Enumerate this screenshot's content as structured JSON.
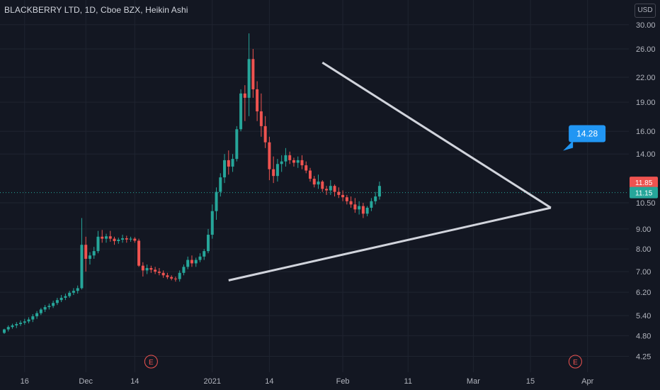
{
  "chart_data": {
    "type": "candlestick",
    "title": "BLACKBERRY LTD, 1D, Cboe BZX, Heikin Ashi",
    "currency": "USD",
    "y_scale": "log",
    "ylim": [
      4.0,
      33.0
    ],
    "y_ticks": [
      "30.00",
      "26.00",
      "22.00",
      "19.00",
      "16.00",
      "14.00",
      "11.85",
      "10.50",
      "9.00",
      "8.00",
      "7.00",
      "6.20",
      "5.40",
      "4.80",
      "4.25"
    ],
    "y_tick_values": [
      30.0,
      26.0,
      22.0,
      19.0,
      16.0,
      14.0,
      11.85,
      10.5,
      9.0,
      8.0,
      7.0,
      6.2,
      5.4,
      4.8,
      4.25
    ],
    "x_ticks": [
      "16",
      "Dec",
      "14",
      "2021",
      "14",
      "Feb",
      "11",
      "Mar",
      "15",
      "Apr"
    ],
    "x_tick_index": [
      5,
      20,
      32,
      51,
      65,
      83,
      99,
      115,
      129,
      143
    ],
    "last_price_tags": [
      {
        "label": "11.85",
        "value": 11.85,
        "color": "#ef5350"
      },
      {
        "label": "11.15",
        "value": 11.15,
        "color": "#26a69a"
      }
    ],
    "current_price_line": 11.15,
    "annotation": {
      "text": "14.28",
      "index": 137,
      "value": 14.28,
      "color": "#2196f3"
    },
    "earnings_markers": [
      {
        "label": "E",
        "index": 36
      },
      {
        "label": "E",
        "index": 140
      }
    ],
    "triangle": [
      {
        "index": 55,
        "value": 6.65
      },
      {
        "index": 78,
        "value": 24.0
      },
      {
        "index": 134,
        "value": 10.2
      }
    ],
    "candles": [
      [
        4.88,
        5.0,
        4.85,
        4.98
      ],
      [
        4.98,
        5.1,
        4.92,
        5.05
      ],
      [
        5.05,
        5.15,
        5.0,
        5.1
      ],
      [
        5.1,
        5.2,
        5.02,
        5.14
      ],
      [
        5.14,
        5.25,
        5.08,
        5.18
      ],
      [
        5.18,
        5.3,
        5.12,
        5.22
      ],
      [
        5.22,
        5.35,
        5.16,
        5.28
      ],
      [
        5.28,
        5.45,
        5.2,
        5.38
      ],
      [
        5.38,
        5.55,
        5.3,
        5.48
      ],
      [
        5.48,
        5.65,
        5.42,
        5.6
      ],
      [
        5.6,
        5.75,
        5.52,
        5.68
      ],
      [
        5.68,
        5.8,
        5.6,
        5.72
      ],
      [
        5.72,
        5.9,
        5.65,
        5.82
      ],
      [
        5.82,
        6.0,
        5.75,
        5.92
      ],
      [
        5.92,
        6.1,
        5.85,
        6.0
      ],
      [
        6.0,
        6.15,
        5.92,
        6.06
      ],
      [
        6.06,
        6.25,
        6.0,
        6.18
      ],
      [
        6.18,
        6.35,
        6.1,
        6.25
      ],
      [
        6.25,
        6.45,
        6.15,
        6.35
      ],
      [
        6.35,
        9.6,
        6.3,
        8.2
      ],
      [
        8.2,
        8.6,
        7.0,
        7.55
      ],
      [
        7.55,
        7.85,
        7.3,
        7.7
      ],
      [
        7.7,
        8.1,
        7.55,
        7.9
      ],
      [
        7.9,
        8.9,
        7.8,
        8.6
      ],
      [
        8.6,
        8.95,
        8.3,
        8.5
      ],
      [
        8.5,
        8.75,
        8.3,
        8.62
      ],
      [
        8.62,
        8.9,
        8.35,
        8.5
      ],
      [
        8.5,
        8.6,
        8.2,
        8.38
      ],
      [
        8.38,
        8.55,
        8.25,
        8.45
      ],
      [
        8.45,
        8.7,
        8.3,
        8.52
      ],
      [
        8.52,
        8.65,
        8.3,
        8.46
      ],
      [
        8.46,
        8.6,
        8.35,
        8.5
      ],
      [
        8.5,
        8.58,
        8.3,
        8.4
      ],
      [
        8.4,
        8.5,
        7.2,
        7.25
      ],
      [
        7.25,
        7.4,
        6.8,
        7.05
      ],
      [
        7.05,
        7.3,
        6.9,
        7.15
      ],
      [
        7.15,
        7.25,
        6.95,
        7.08
      ],
      [
        7.08,
        7.2,
        6.9,
        7.0
      ],
      [
        7.0,
        7.15,
        6.85,
        6.95
      ],
      [
        6.95,
        7.05,
        6.75,
        6.85
      ],
      [
        6.85,
        6.95,
        6.7,
        6.78
      ],
      [
        6.78,
        6.85,
        6.65,
        6.72
      ],
      [
        6.72,
        6.8,
        6.6,
        6.7
      ],
      [
        6.7,
        7.05,
        6.6,
        6.95
      ],
      [
        6.95,
        7.3,
        6.85,
        7.2
      ],
      [
        7.2,
        7.65,
        7.1,
        7.5
      ],
      [
        7.5,
        7.7,
        7.2,
        7.35
      ],
      [
        7.35,
        7.6,
        7.2,
        7.5
      ],
      [
        7.5,
        7.8,
        7.4,
        7.65
      ],
      [
        7.65,
        8.0,
        7.5,
        7.9
      ],
      [
        7.9,
        9.0,
        7.8,
        8.7
      ],
      [
        8.7,
        10.4,
        8.5,
        10.0
      ],
      [
        10.0,
        11.5,
        9.5,
        11.2
      ],
      [
        11.2,
        12.5,
        10.9,
        12.2
      ],
      [
        12.2,
        14.0,
        11.8,
        13.5
      ],
      [
        13.5,
        14.3,
        12.4,
        13.0
      ],
      [
        13.0,
        14.0,
        12.6,
        13.6
      ],
      [
        13.6,
        16.5,
        13.4,
        16.2
      ],
      [
        16.2,
        20.5,
        16.0,
        20.0
      ],
      [
        20.0,
        21.0,
        17.0,
        19.5
      ],
      [
        19.5,
        28.5,
        17.5,
        24.5
      ],
      [
        24.5,
        26.0,
        19.5,
        20.5
      ],
      [
        20.5,
        21.5,
        17.0,
        18.0
      ],
      [
        18.0,
        20.0,
        15.5,
        16.5
      ],
      [
        16.5,
        17.5,
        14.5,
        15.0
      ],
      [
        15.0,
        15.5,
        12.0,
        12.8
      ],
      [
        12.8,
        13.8,
        11.8,
        12.3
      ],
      [
        12.3,
        13.6,
        11.9,
        13.2
      ],
      [
        13.2,
        13.9,
        12.6,
        13.4
      ],
      [
        13.4,
        14.5,
        13.0,
        13.9
      ],
      [
        13.9,
        14.2,
        13.2,
        13.5
      ],
      [
        13.5,
        13.7,
        13.0,
        13.3
      ],
      [
        13.3,
        13.8,
        12.9,
        13.5
      ],
      [
        13.5,
        13.9,
        12.8,
        13.1
      ],
      [
        13.1,
        13.4,
        12.5,
        12.7
      ],
      [
        12.7,
        12.9,
        11.9,
        12.1
      ],
      [
        12.1,
        12.3,
        11.5,
        11.7
      ],
      [
        11.7,
        12.4,
        11.4,
        11.9
      ],
      [
        11.9,
        12.0,
        11.2,
        11.4
      ],
      [
        11.4,
        11.6,
        11.0,
        11.3
      ],
      [
        11.3,
        12.0,
        11.0,
        11.6
      ],
      [
        11.6,
        11.7,
        10.9,
        11.2
      ],
      [
        11.2,
        11.5,
        10.8,
        11.0
      ],
      [
        11.0,
        11.3,
        10.6,
        10.85
      ],
      [
        10.85,
        11.0,
        10.4,
        10.6
      ],
      [
        10.6,
        10.9,
        10.2,
        10.4
      ],
      [
        10.4,
        10.8,
        9.9,
        10.1
      ],
      [
        10.1,
        10.6,
        9.8,
        10.3
      ],
      [
        10.3,
        10.5,
        9.6,
        9.85
      ],
      [
        9.85,
        10.3,
        9.7,
        10.2
      ],
      [
        10.2,
        10.8,
        10.0,
        10.6
      ],
      [
        10.6,
        11.2,
        10.4,
        10.9
      ],
      [
        10.9,
        11.9,
        10.7,
        11.6
      ]
    ]
  }
}
